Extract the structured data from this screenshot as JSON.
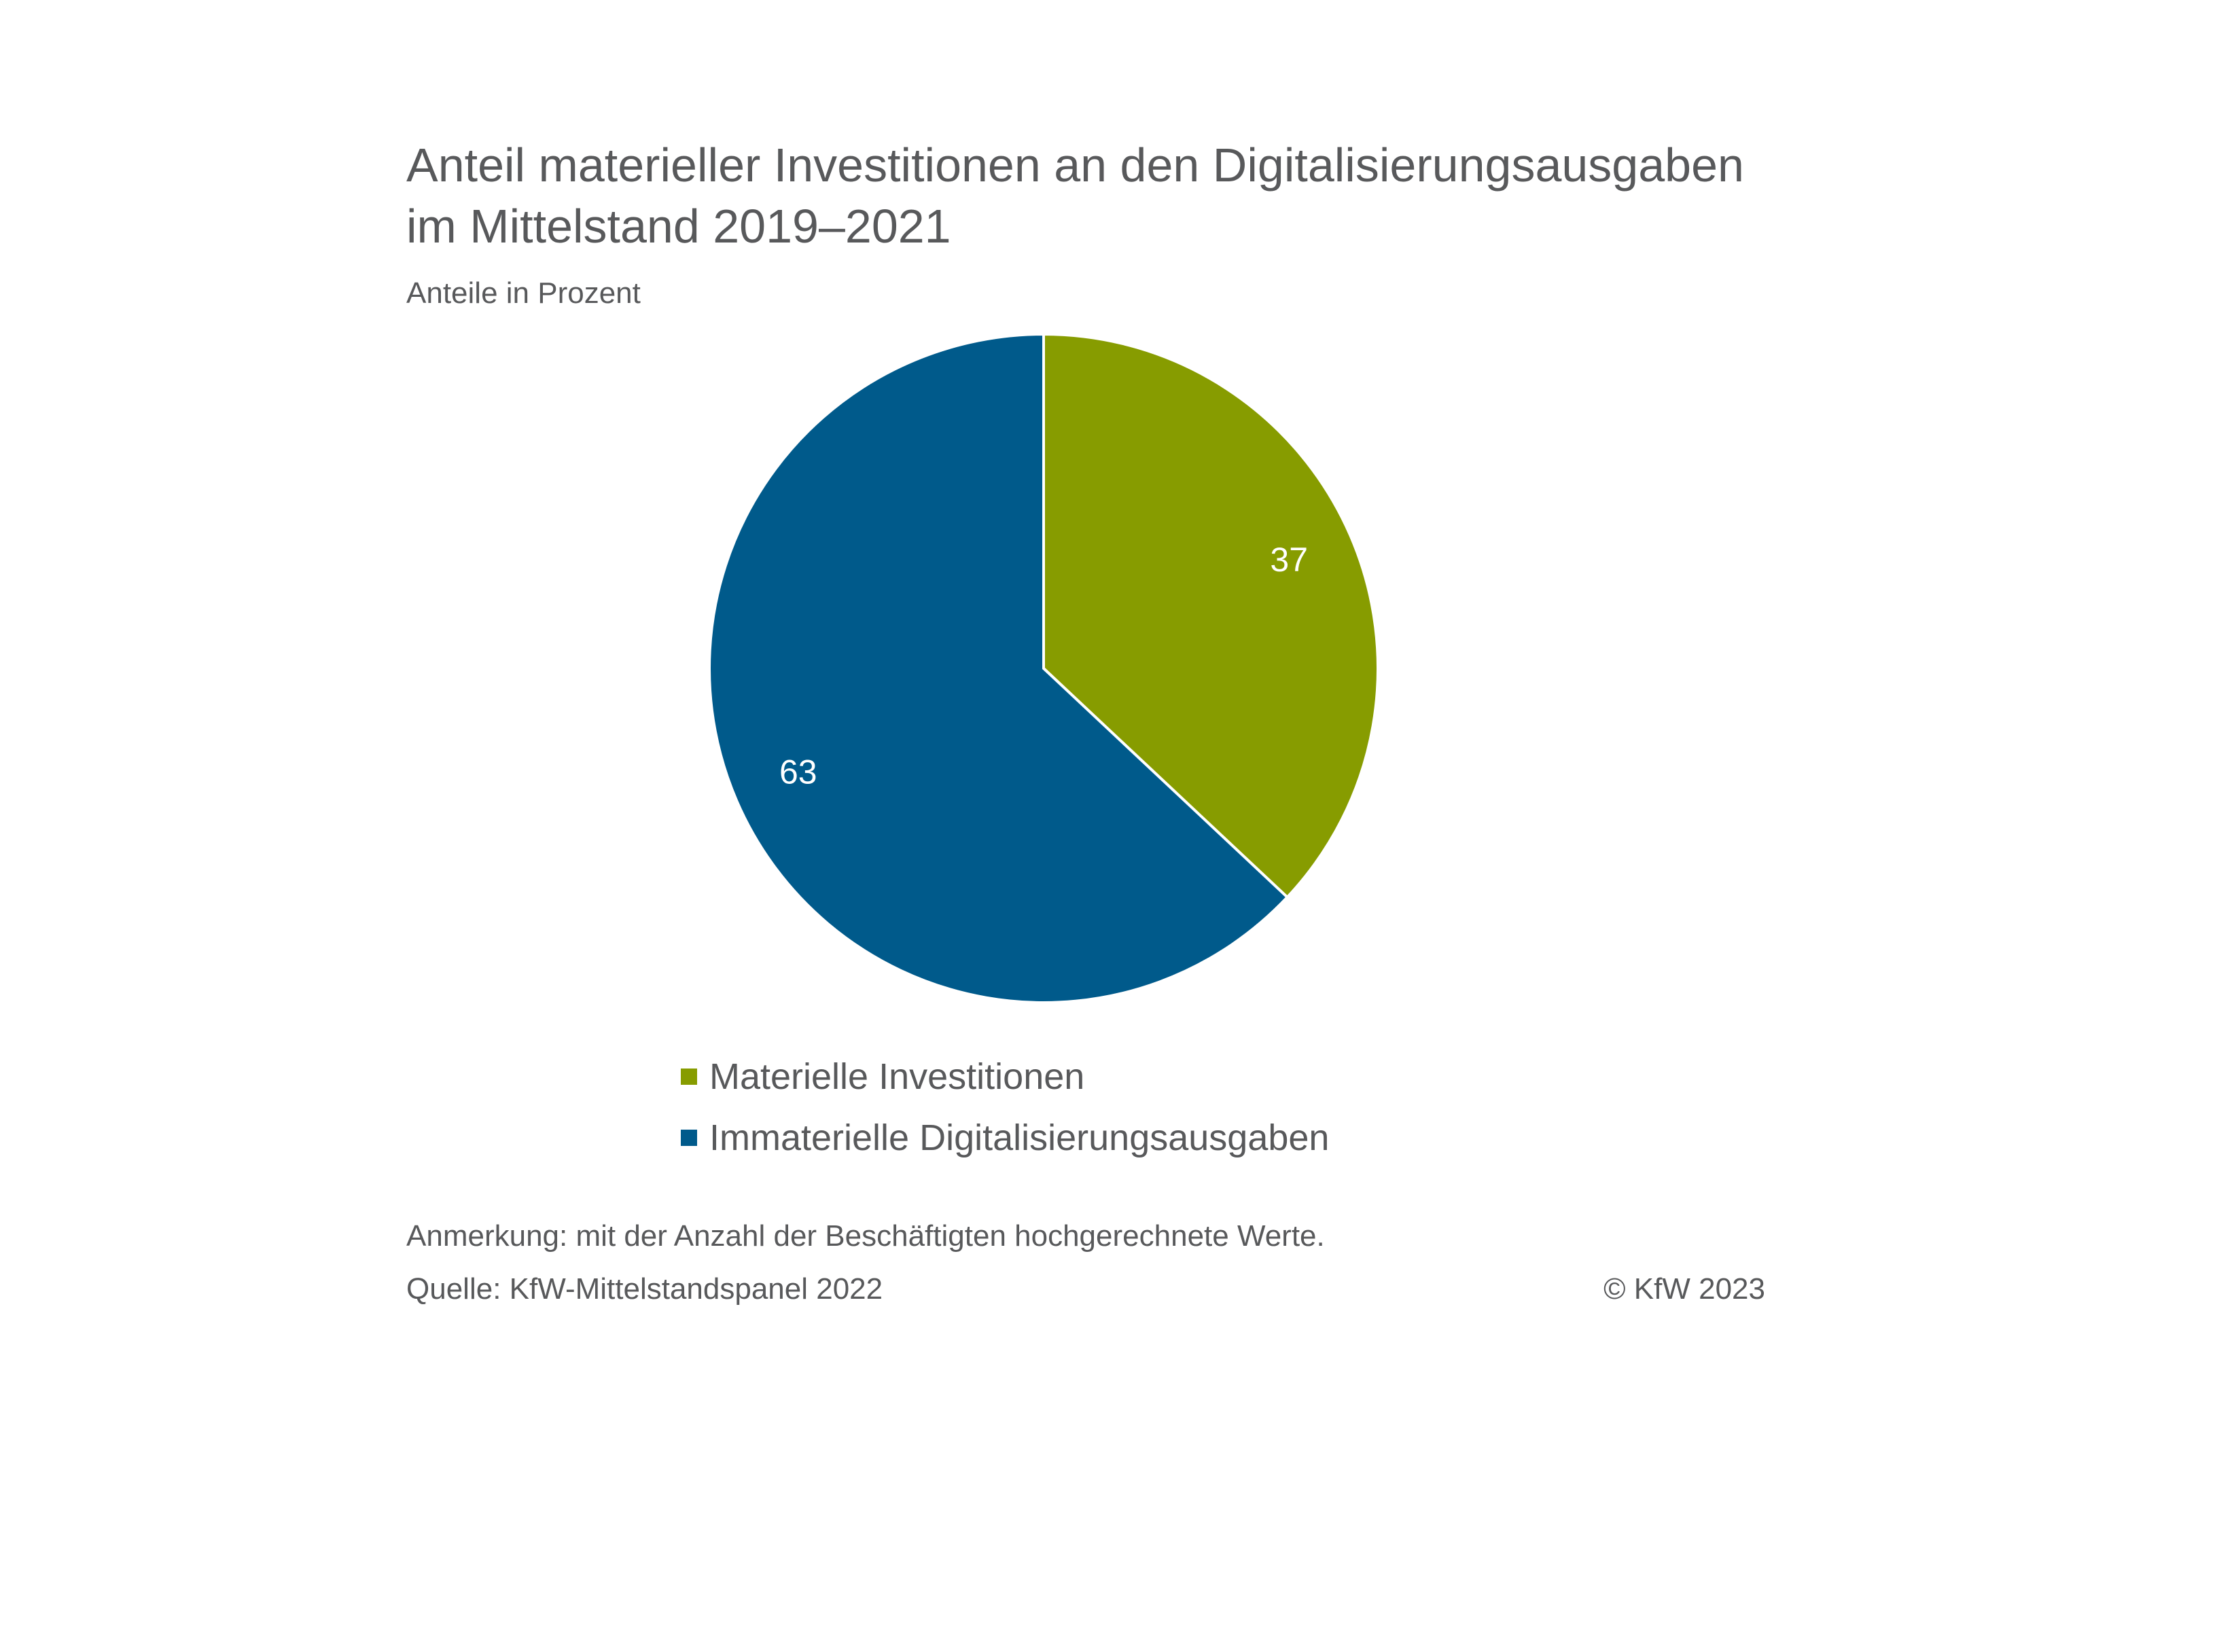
{
  "chart_data": {
    "type": "pie",
    "title": "Anteil materieller Investitionen an den Digitalisierungsausgaben\nim Mittelstand 2019–2021",
    "subtitle": "Anteile in Prozent",
    "slices": [
      {
        "label": "Materielle Investitionen",
        "value": 37,
        "color": "#879c00"
      },
      {
        "label": "Immaterielle Digitalisierungsausgaben",
        "value": 63,
        "color": "#005a8b"
      }
    ],
    "legend_position": "bottom",
    "data_labels": [
      "37",
      "63"
    ]
  },
  "footer": {
    "note": "Anmerkung: mit der Anzahl der Beschäftigten hochgerechnete Werte.",
    "source": "Quelle: KfW-Mittelstandspanel 2022",
    "copyright": "© KfW 2023"
  }
}
